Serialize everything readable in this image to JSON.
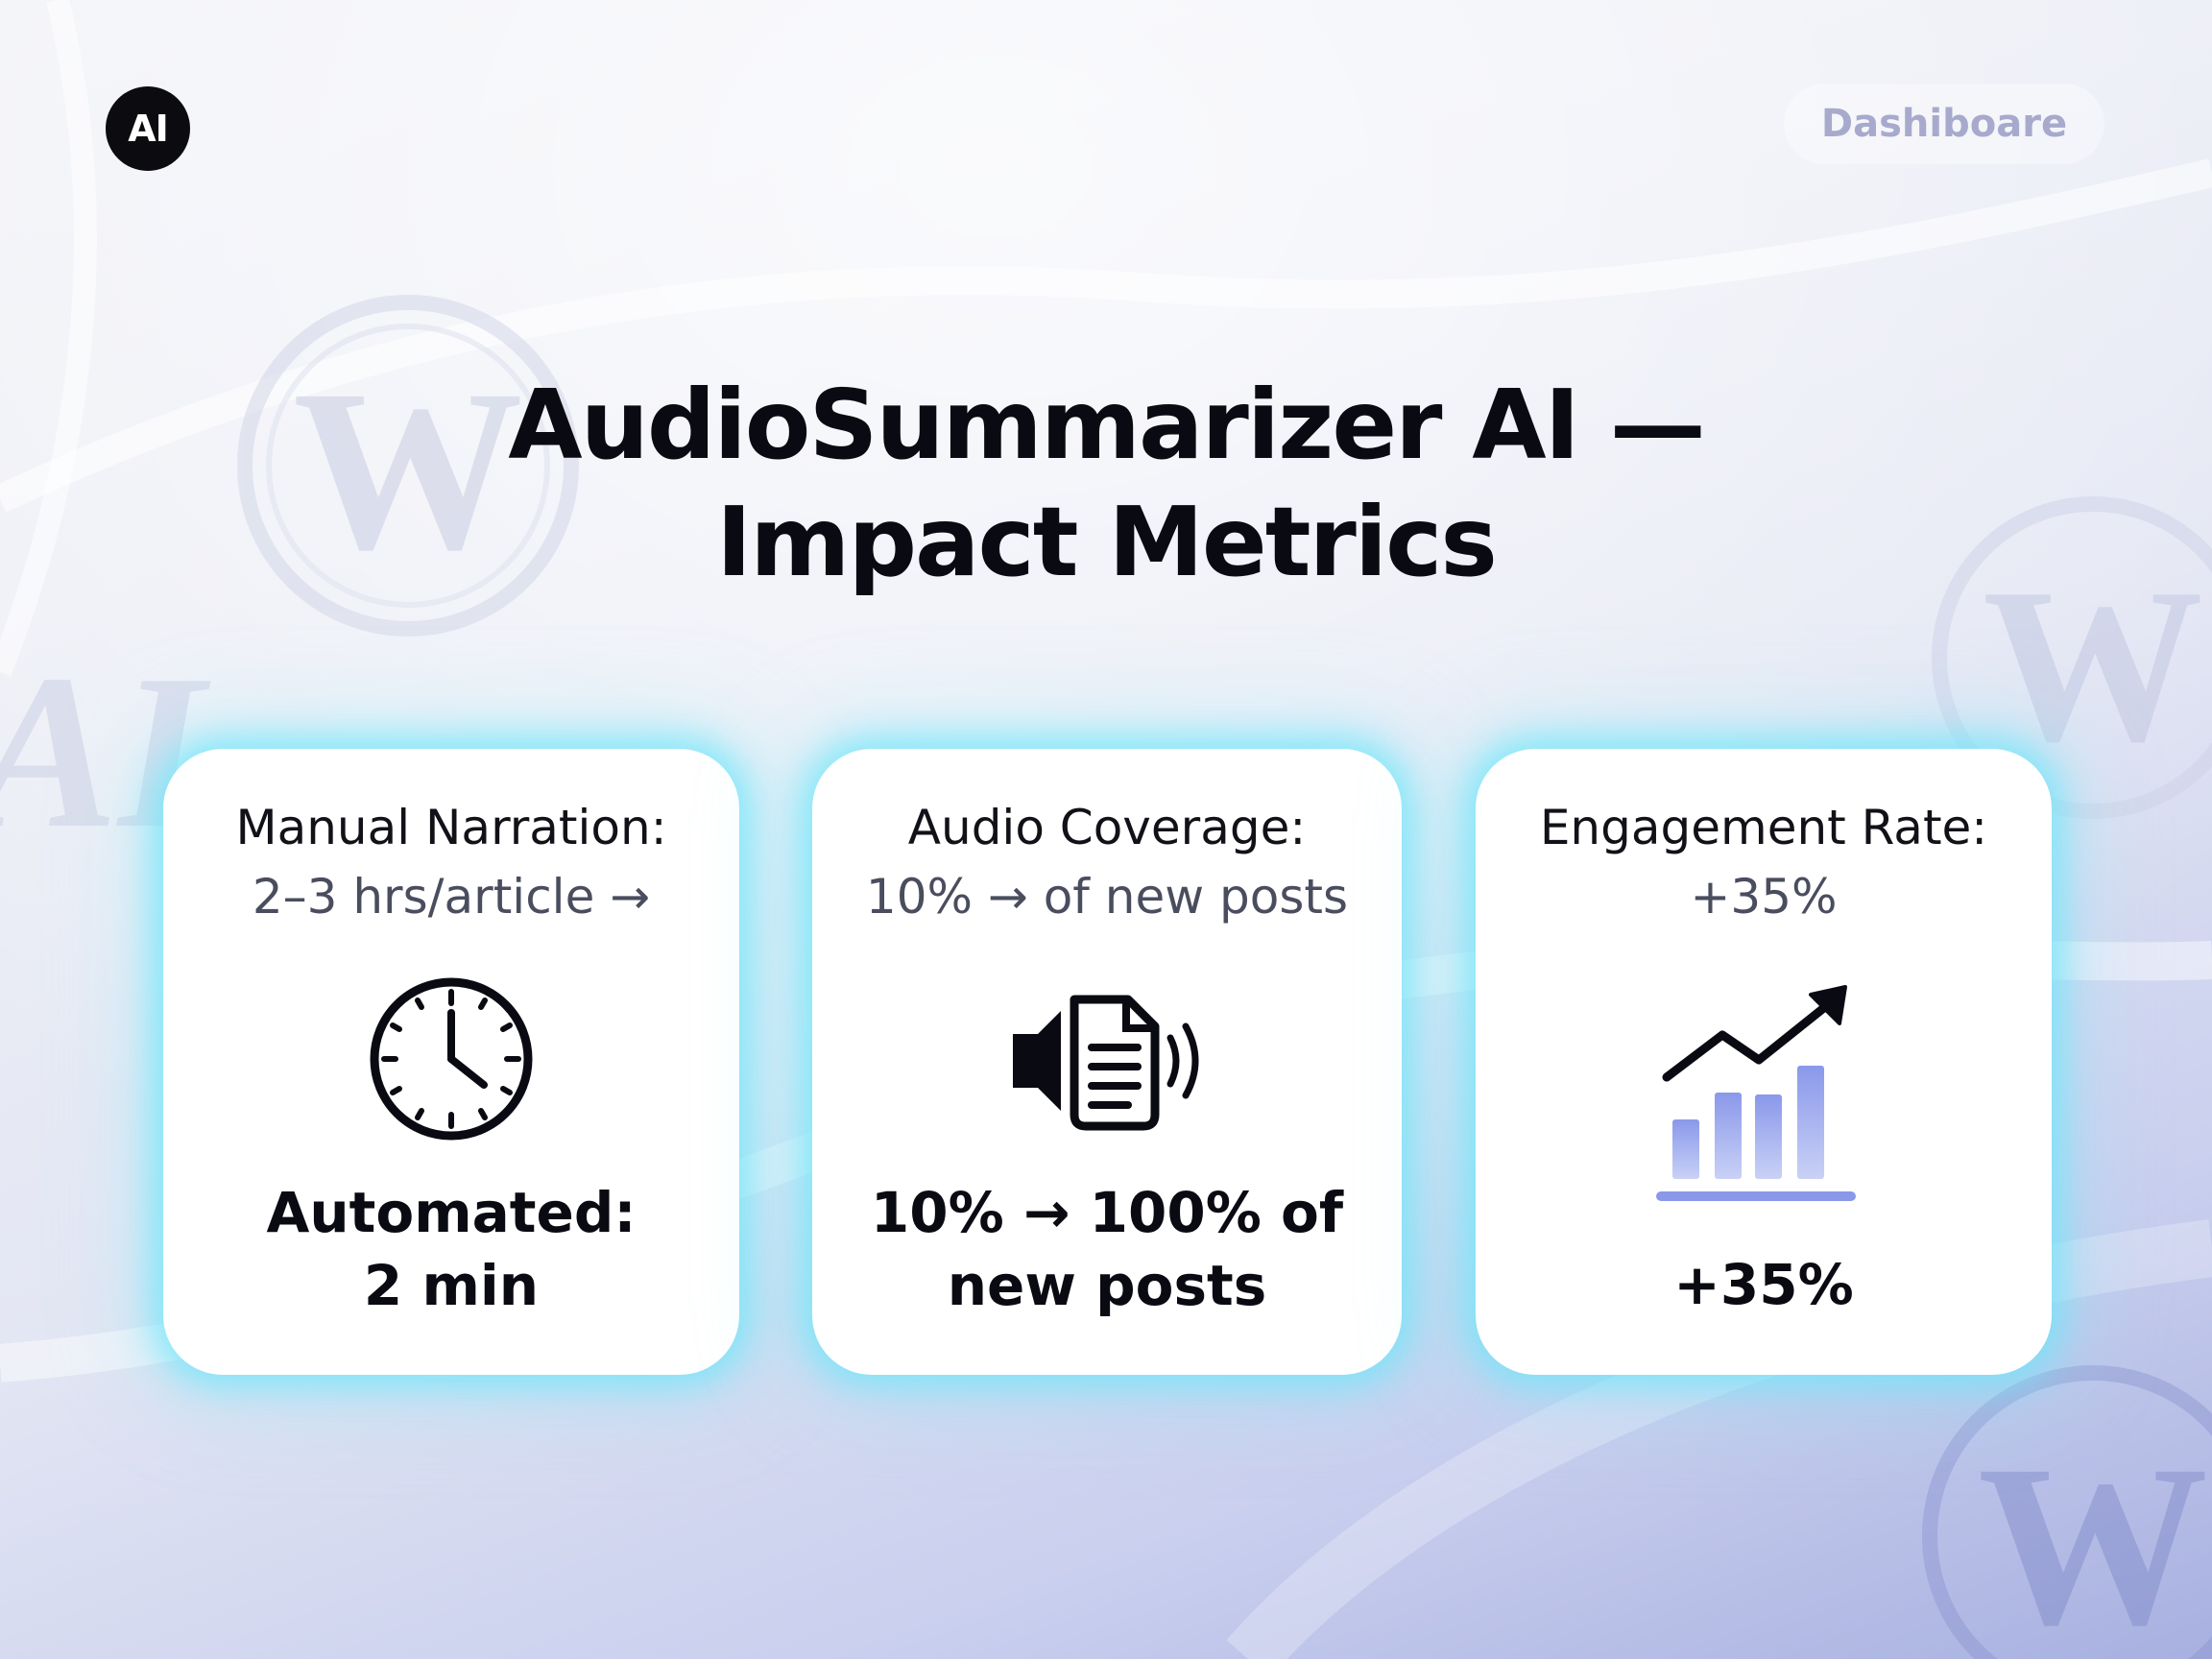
{
  "header": {
    "logo_text": "AI",
    "dashboard_label": "Dashiboare"
  },
  "title": {
    "line1": "AudioSummarizer AI —",
    "line2": "Impact Metrics"
  },
  "cards": [
    {
      "label": "Manual Narration:",
      "sub": "2–3 hrs/article →",
      "icon": "clock-icon",
      "value_line1": "Automated:",
      "value_line2": "2 min"
    },
    {
      "label": "Audio Coverage:",
      "sub": "10% → of new posts",
      "icon": "audio-document-icon",
      "value_line1": "10% → 100% of",
      "value_line2": "new posts"
    },
    {
      "label": "Engagement Rate:",
      "sub": "+35%",
      "icon": "growth-chart-icon",
      "value_line1": "+35%"
    }
  ],
  "background": {
    "watermark_letter": "W",
    "watermark_text": "AI"
  },
  "colors": {
    "card_glow": "#6ee6fa",
    "chart_bar": "#8f9fe8",
    "title": "#0a0a12",
    "subtle_text": "#4a4d5e"
  }
}
